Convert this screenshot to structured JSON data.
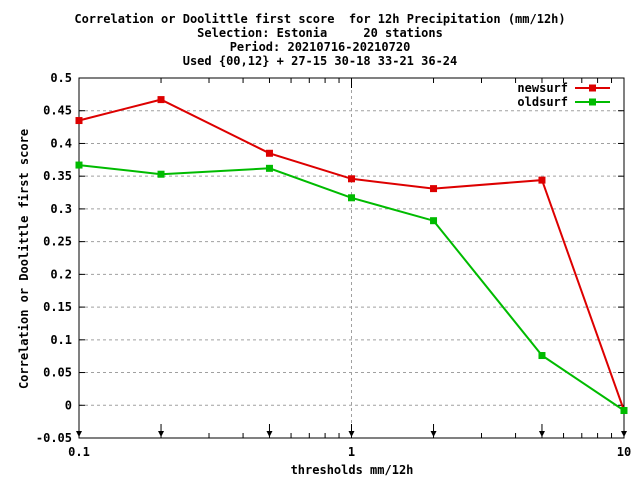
{
  "chart_data": {
    "type": "line",
    "title_lines": [
      "Correlation or Doolittle first score  for 12h Precipitation (mm/12h)",
      "Selection: Estonia     20 stations",
      "Period: 20210716-20210720",
      "Used {00,12} + 27-15 30-18 33-21 36-24"
    ],
    "xlabel": "thresholds mm/12h",
    "ylabel": "Correlation or Doolittle first score",
    "x_scale": "log",
    "xlim": [
      0.1,
      10
    ],
    "ylim": [
      -0.05,
      0.5
    ],
    "x_ticks": [
      "0.1",
      "1",
      "10"
    ],
    "y_ticks": [
      "-0.05",
      "0",
      "0.05",
      "0.1",
      "0.15",
      "0.2",
      "0.25",
      "0.3",
      "0.35",
      "0.4",
      "0.45",
      "0.5"
    ],
    "grid": true,
    "legend_position": "top-right",
    "x": [
      0.1,
      0.2,
      0.5,
      1,
      2,
      5,
      10
    ],
    "series": [
      {
        "name": "newsurf",
        "color": "#dd0000",
        "values": [
          0.435,
          0.467,
          0.385,
          0.346,
          0.331,
          0.344,
          -0.008
        ]
      },
      {
        "name": "oldsurf",
        "color": "#00bb00",
        "values": [
          0.367,
          0.353,
          0.362,
          0.317,
          0.282,
          0.076,
          -0.008
        ]
      }
    ]
  }
}
